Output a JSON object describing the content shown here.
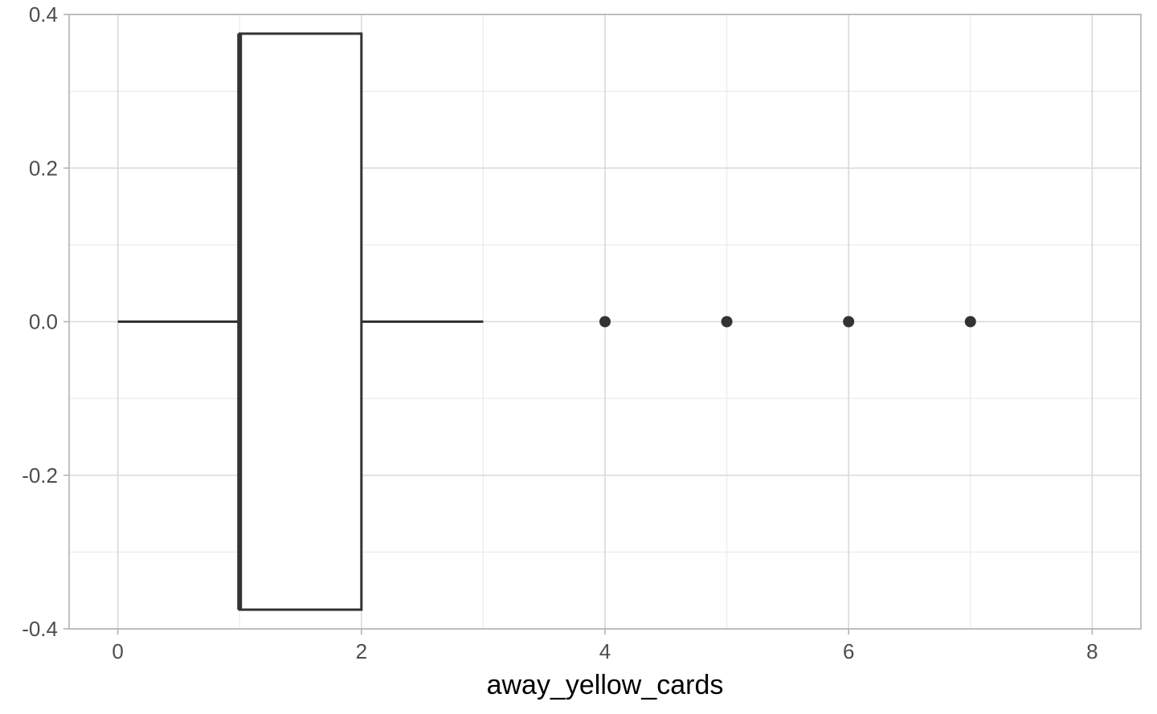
{
  "chart_data": {
    "type": "boxplot",
    "orientation": "horizontal",
    "title": "",
    "xlabel": "away_yellow_cards",
    "ylabel": "",
    "xlim": [
      -0.4,
      8.4
    ],
    "ylim": [
      -0.4,
      0.4
    ],
    "x_ticks": [
      0,
      2,
      4,
      6,
      8
    ],
    "x_tick_labels": [
      "0",
      "2",
      "4",
      "6",
      "8"
    ],
    "y_ticks": [
      -0.4,
      -0.2,
      0.0,
      0.2,
      0.4
    ],
    "y_tick_labels": [
      "-0.4",
      "-0.2",
      "0.0",
      "0.2",
      "0.4"
    ],
    "x_minor_ticks": [
      1,
      3,
      5,
      7
    ],
    "y_minor_ticks": [
      -0.3,
      -0.1,
      0.1,
      0.3
    ],
    "grid": true,
    "legend": "none",
    "box": {
      "y_center": 0.0,
      "y_half_height": 0.375,
      "whisker_low": 0,
      "q1": 1,
      "median": 1,
      "q3": 2,
      "whisker_high": 3
    },
    "outliers": [
      {
        "x": 4,
        "y": 0
      },
      {
        "x": 5,
        "y": 0
      },
      {
        "x": 6,
        "y": 0
      },
      {
        "x": 7,
        "y": 0
      }
    ],
    "colors": {
      "box_line": "#333333",
      "box_fill": "#ffffff",
      "outlier": "#333333",
      "grid_major": "#d9d9d9",
      "grid_minor": "#ebebeb",
      "panel_border": "#b3b3b3",
      "tick_text": "#4d4d4d",
      "title_text": "#000000"
    }
  }
}
